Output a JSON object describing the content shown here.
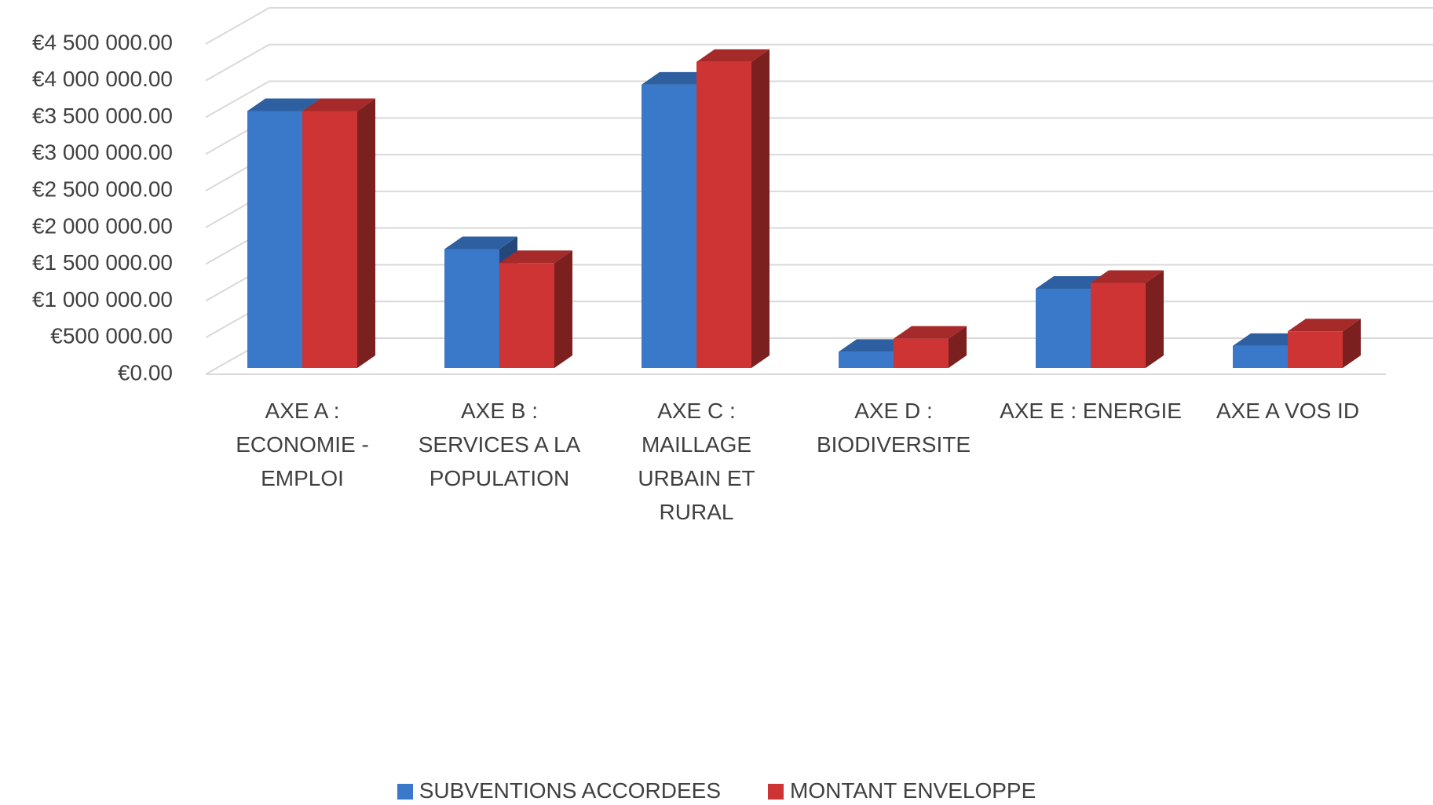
{
  "chart_data": {
    "type": "bar3d",
    "categories": [
      "AXE A : ECONOMIE - EMPLOI",
      "AXE B : SERVICES A LA POPULATION",
      "AXE C : MAILLAGE URBAIN ET RURAL",
      "AXE D : BIODIVERSITE",
      "AXE E : ENERGIE",
      "AXE A VOS ID"
    ],
    "series": [
      {
        "name": "SUBVENTIONS ACCORDEES",
        "color": "#3a78c9",
        "values": [
          3500000,
          1620000,
          3860000,
          220000,
          1080000,
          300000
        ]
      },
      {
        "name": "MONTANT ENVELOPPE",
        "color": "#cf3434",
        "values": [
          3500000,
          1430000,
          4170000,
          400000,
          1160000,
          500000
        ]
      }
    ],
    "ylim": [
      0,
      4500000
    ],
    "yticks": [
      {
        "value": 0,
        "label": "€0.00"
      },
      {
        "value": 500000,
        "label": "€500 000.00"
      },
      {
        "value": 1000000,
        "label": "€1 000 000.00"
      },
      {
        "value": 1500000,
        "label": "€1 500 000.00"
      },
      {
        "value": 2000000,
        "label": "€2 000 000.00"
      },
      {
        "value": 2500000,
        "label": "€2 500 000.00"
      },
      {
        "value": 3000000,
        "label": "€3 000 000.00"
      },
      {
        "value": 3500000,
        "label": "€3 500 000.00"
      },
      {
        "value": 4000000,
        "label": "€4 000 000.00"
      },
      {
        "value": 4500000,
        "label": "€4 500 000.00"
      }
    ],
    "grid": true,
    "legend": "bottom"
  }
}
